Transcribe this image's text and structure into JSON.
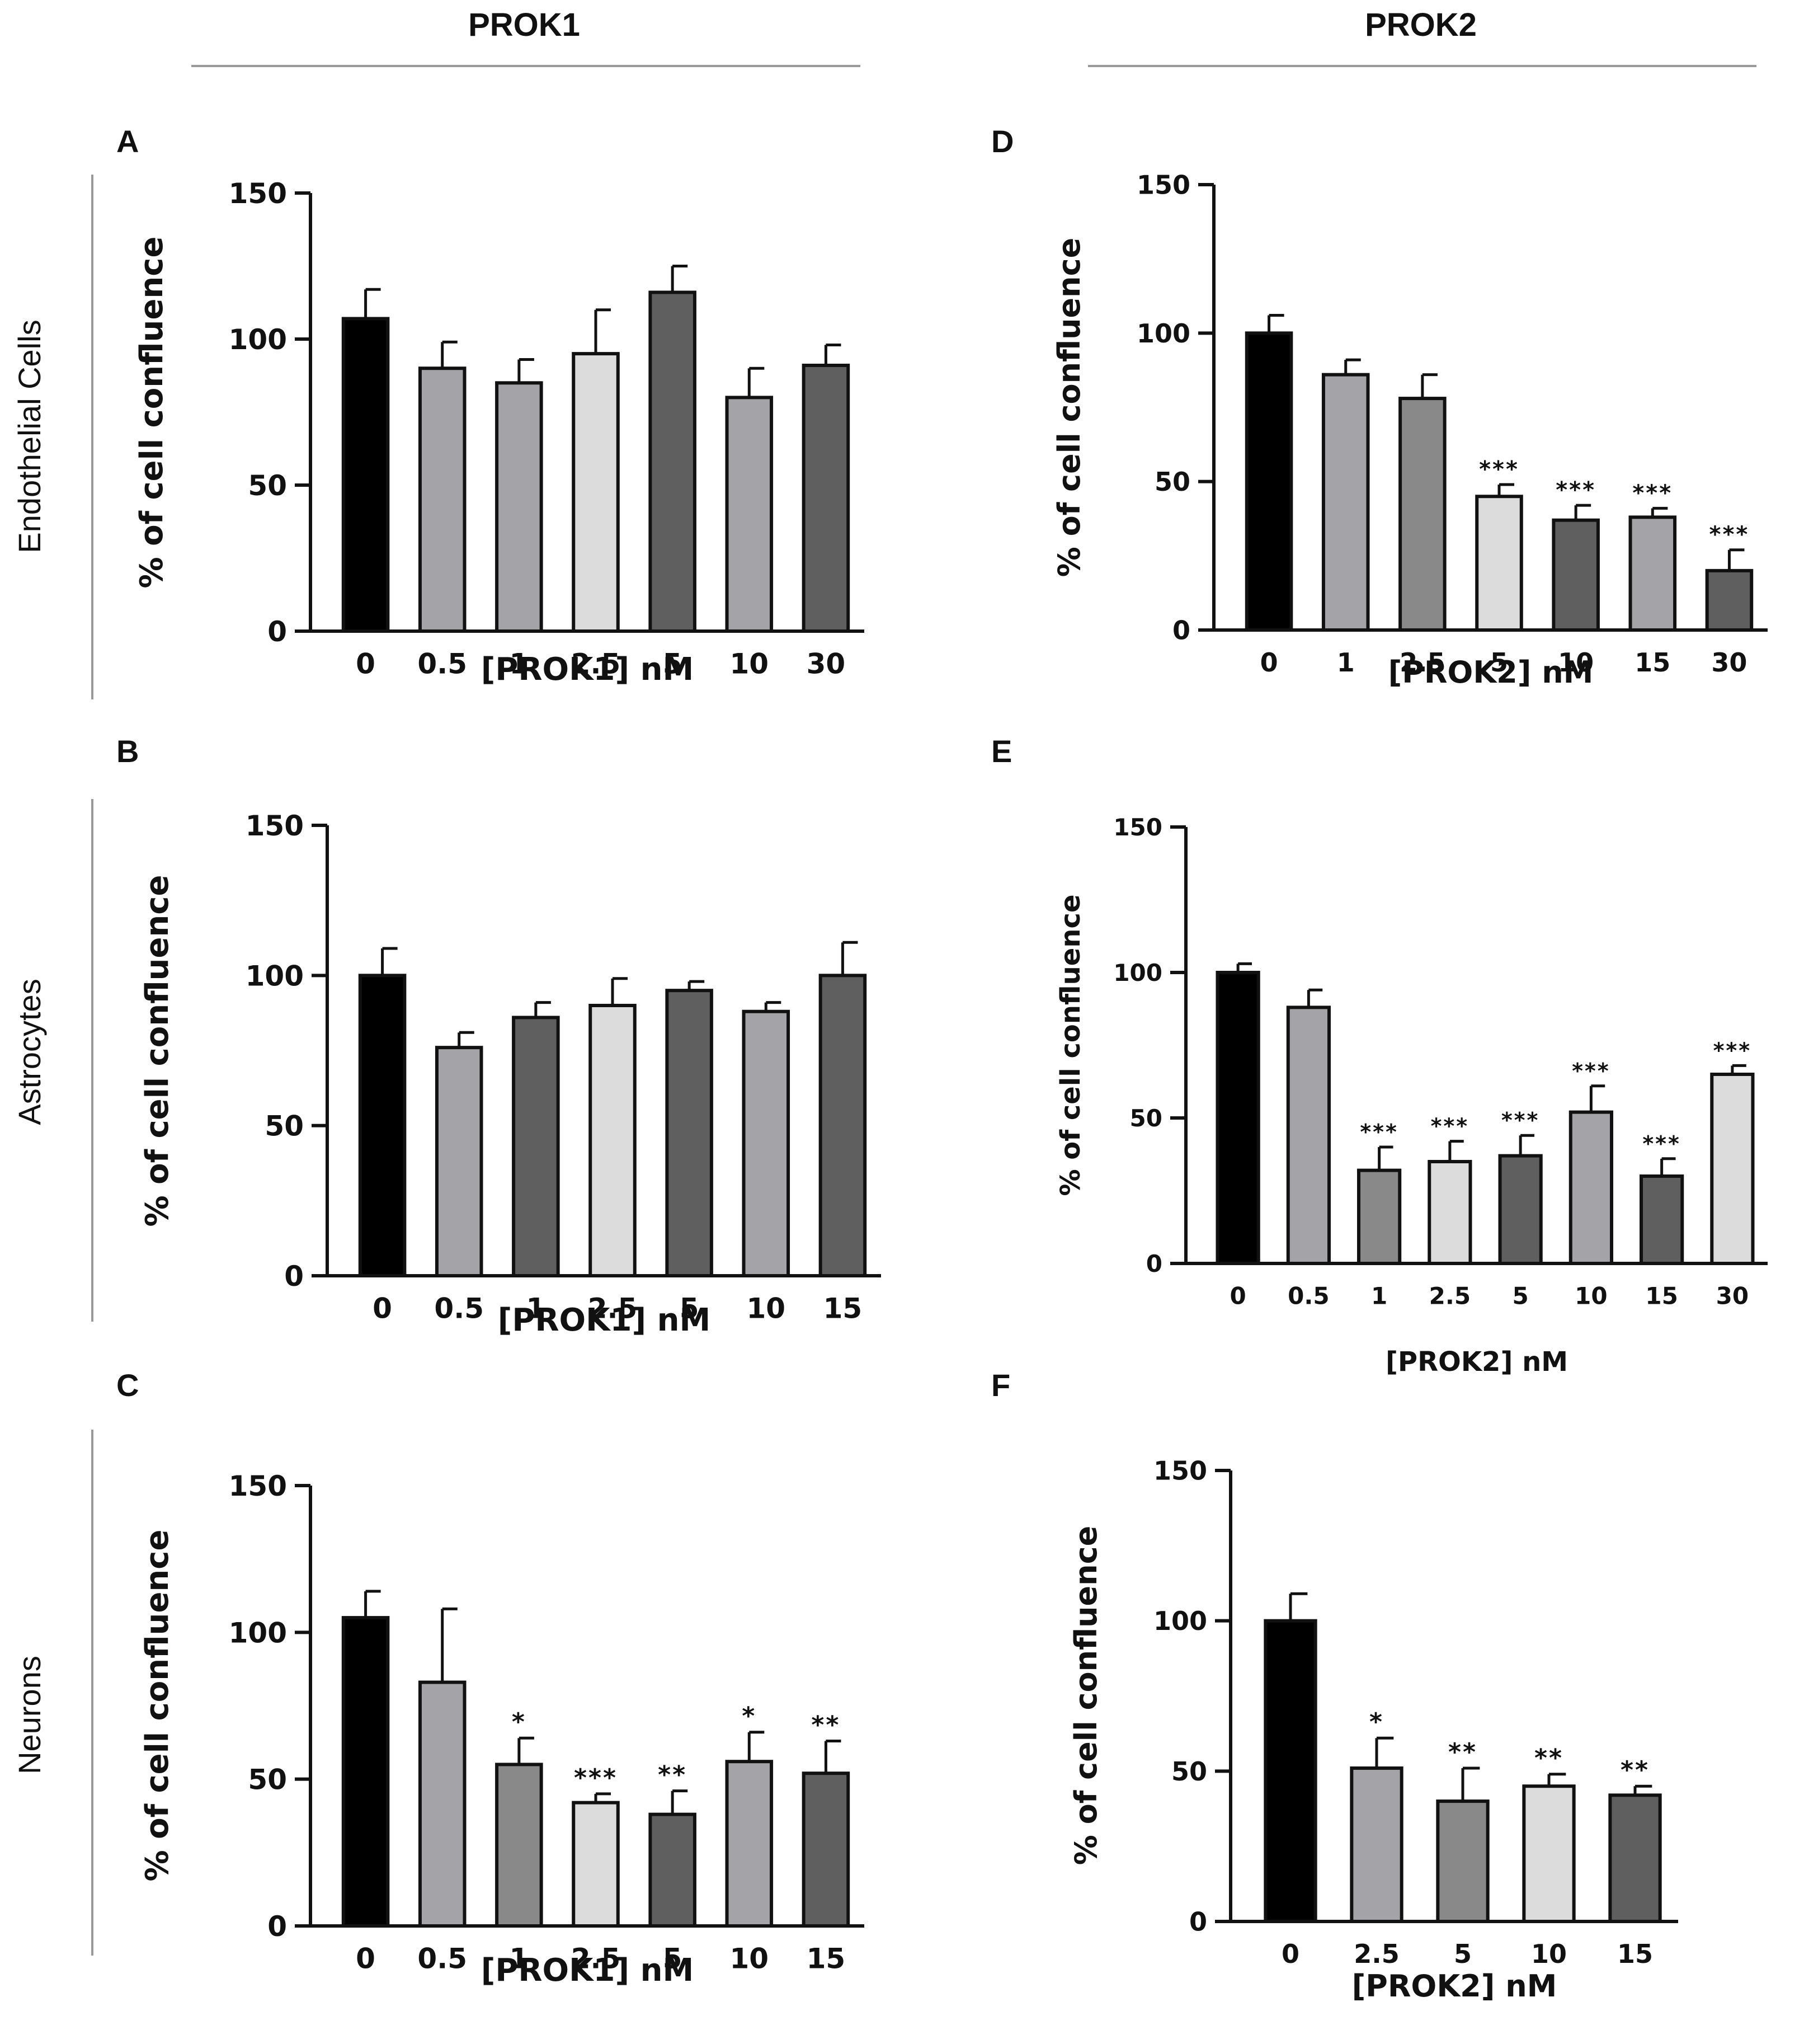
{
  "column_headers": [
    "PROK1",
    "PROK2"
  ],
  "row_headers": [
    "Endothelial Cells",
    "Astrocytes",
    "Neurons"
  ],
  "colors": {
    "black": "#000000",
    "mid_grey": "#a4a4a8",
    "grey": "#898989",
    "light_grey": "#dcdcdc",
    "dark_grey": "#5f5f5f",
    "outline": "#111111"
  },
  "chart_data": [
    {
      "panel": "A",
      "type": "bar",
      "xlabel": "[PROK1] nM",
      "ylabel": "% of cell confluence",
      "ylim": [
        0,
        150
      ],
      "yticks": [
        0,
        50,
        100,
        150
      ],
      "categories": [
        "0",
        "0.5",
        "1",
        "2.5",
        "5",
        "10",
        "30"
      ],
      "values": [
        107,
        90,
        85,
        95,
        116,
        80,
        91
      ],
      "errors": [
        10,
        9,
        8,
        15,
        9,
        10,
        7
      ],
      "significance": [
        "",
        "",
        "",
        "",
        "",
        "",
        ""
      ],
      "bar_colors": [
        "black",
        "mid_grey",
        "mid_grey",
        "light_grey",
        "dark_grey",
        "mid_grey",
        "dark_grey"
      ]
    },
    {
      "panel": "B",
      "type": "bar",
      "xlabel": "[PROK1] nM",
      "ylabel": "% of cell confluence",
      "ylim": [
        0,
        150
      ],
      "yticks": [
        0,
        50,
        100,
        150
      ],
      "categories": [
        "0",
        "0.5",
        "1",
        "2.5",
        "5",
        "10",
        "15"
      ],
      "values": [
        100,
        76,
        86,
        90,
        95,
        88,
        100
      ],
      "errors": [
        9,
        5,
        5,
        9,
        3,
        3,
        11
      ],
      "significance": [
        "",
        "",
        "",
        "",
        "",
        "",
        ""
      ],
      "bar_colors": [
        "black",
        "mid_grey",
        "dark_grey",
        "light_grey",
        "dark_grey",
        "mid_grey",
        "dark_grey"
      ]
    },
    {
      "panel": "C",
      "type": "bar",
      "xlabel": "[PROK1] nM",
      "ylabel": "% of cell confluence",
      "ylim": [
        0,
        150
      ],
      "yticks": [
        0,
        50,
        100,
        150
      ],
      "categories": [
        "0",
        "0.5",
        "1",
        "2.5",
        "5",
        "10",
        "15"
      ],
      "values": [
        105,
        83,
        55,
        42,
        38,
        56,
        52
      ],
      "errors": [
        9,
        25,
        9,
        3,
        8,
        10,
        11
      ],
      "significance": [
        "",
        "",
        "*",
        "***",
        "**",
        "*",
        "**"
      ],
      "bar_colors": [
        "black",
        "mid_grey",
        "grey",
        "light_grey",
        "dark_grey",
        "mid_grey",
        "dark_grey"
      ]
    },
    {
      "panel": "D",
      "type": "bar",
      "xlabel": "[PROK2] nM",
      "ylabel": "% of cell confluence",
      "ylim": [
        0,
        150
      ],
      "yticks": [
        0,
        50,
        100,
        150
      ],
      "categories": [
        "0",
        "1",
        "2.5",
        "5",
        "10",
        "15",
        "30"
      ],
      "values": [
        100,
        86,
        78,
        45,
        37,
        38,
        20
      ],
      "errors": [
        6,
        5,
        8,
        4,
        5,
        3,
        7
      ],
      "significance": [
        "",
        "",
        "",
        "***",
        "***",
        "***",
        "***"
      ],
      "bar_colors": [
        "black",
        "mid_grey",
        "grey",
        "light_grey",
        "dark_grey",
        "mid_grey",
        "dark_grey"
      ]
    },
    {
      "panel": "E",
      "type": "bar",
      "xlabel": "[PROK2] nM",
      "ylabel": "% of cell confluence",
      "ylim": [
        0,
        150
      ],
      "yticks": [
        0,
        50,
        100,
        150
      ],
      "categories": [
        "0",
        "0.5",
        "1",
        "2.5",
        "5",
        "10",
        "15",
        "30"
      ],
      "values": [
        100,
        88,
        32,
        35,
        37,
        52,
        30,
        65
      ],
      "errors": [
        3,
        6,
        8,
        7,
        7,
        9,
        6,
        3
      ],
      "significance": [
        "",
        "",
        "***",
        "***",
        "***",
        "***",
        "***",
        "***"
      ],
      "bar_colors": [
        "black",
        "mid_grey",
        "grey",
        "light_grey",
        "dark_grey",
        "mid_grey",
        "dark_grey",
        "light_grey"
      ]
    },
    {
      "panel": "F",
      "type": "bar",
      "xlabel": "[PROK2] nM",
      "ylabel": "% of cell confluence",
      "ylim": [
        0,
        150
      ],
      "yticks": [
        0,
        50,
        100,
        150
      ],
      "categories": [
        "0",
        "2.5",
        "5",
        "10",
        "15"
      ],
      "values": [
        100,
        51,
        40,
        45,
        42
      ],
      "errors": [
        9,
        10,
        11,
        4,
        3
      ],
      "significance": [
        "",
        "*",
        "**",
        "**",
        "**"
      ],
      "bar_colors": [
        "black",
        "mid_grey",
        "grey",
        "light_grey",
        "dark_grey"
      ]
    }
  ]
}
